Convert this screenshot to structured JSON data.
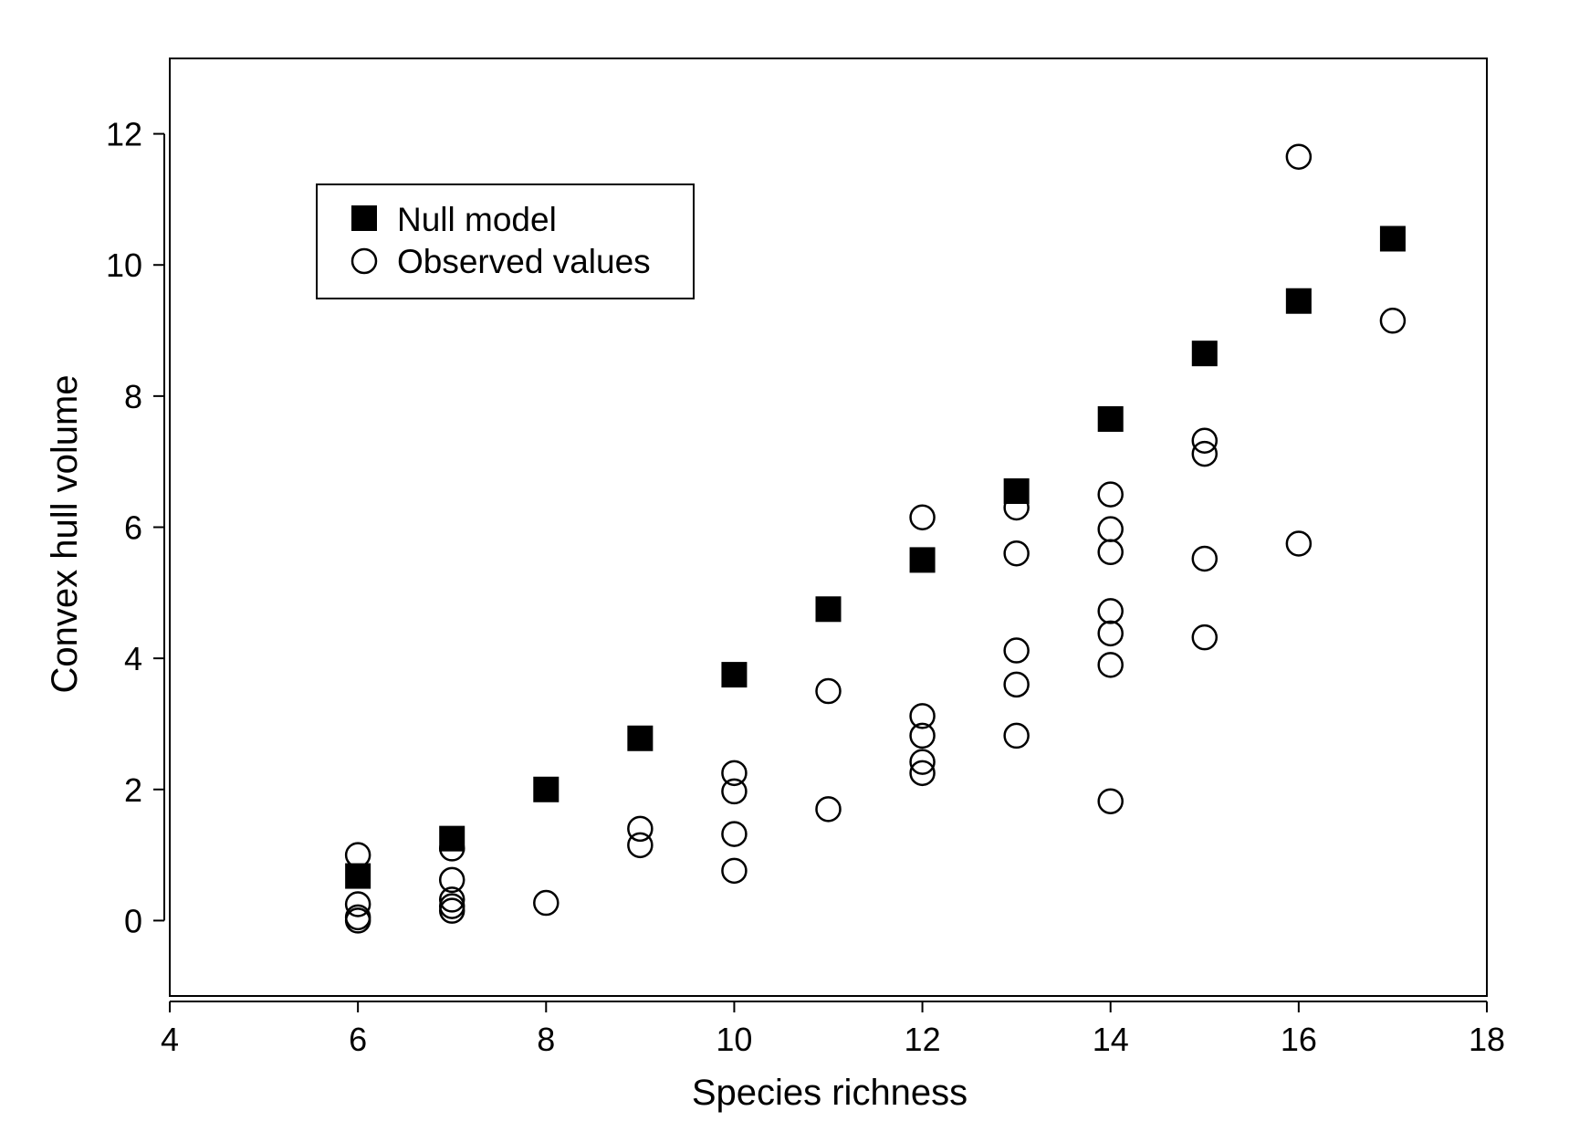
{
  "chart_data": {
    "type": "scatter",
    "xlabel": "Species richness",
    "ylabel": "Convex hull volume",
    "xlim": [
      4,
      18
    ],
    "ylim": [
      -1.15,
      13.15
    ],
    "xticks": [
      "4",
      "6",
      "8",
      "10",
      "12",
      "14",
      "16",
      "18"
    ],
    "yticks": [
      "0",
      "2",
      "4",
      "6",
      "8",
      "10",
      "12"
    ],
    "grid": false,
    "legend_position": "top-left",
    "series": [
      {
        "name": "Null model",
        "marker": "filled-square",
        "color": "#000000",
        "points": [
          [
            6,
            0.68
          ],
          [
            7,
            1.25
          ],
          [
            8,
            2.0
          ],
          [
            9,
            2.78
          ],
          [
            10,
            3.75
          ],
          [
            11,
            4.75
          ],
          [
            12,
            5.5
          ],
          [
            13,
            6.55
          ],
          [
            14,
            7.65
          ],
          [
            15,
            8.65
          ],
          [
            16,
            9.45
          ],
          [
            17,
            10.4
          ]
        ]
      },
      {
        "name": "Observed values",
        "marker": "open-circle",
        "color": "#000000",
        "points": [
          [
            6,
            1.0
          ],
          [
            6,
            0.25
          ],
          [
            6,
            0.05
          ],
          [
            6,
            0.0
          ],
          [
            7,
            1.1
          ],
          [
            7,
            0.62
          ],
          [
            7,
            0.32
          ],
          [
            7,
            0.22
          ],
          [
            7,
            0.15
          ],
          [
            8,
            0.27
          ],
          [
            9,
            1.4
          ],
          [
            9,
            1.15
          ],
          [
            10,
            2.25
          ],
          [
            10,
            1.97
          ],
          [
            10,
            1.32
          ],
          [
            10,
            0.76
          ],
          [
            11,
            3.5
          ],
          [
            11,
            1.7
          ],
          [
            12,
            6.15
          ],
          [
            12,
            3.12
          ],
          [
            12,
            2.82
          ],
          [
            12,
            2.42
          ],
          [
            12,
            2.25
          ],
          [
            13,
            6.3
          ],
          [
            13,
            5.6
          ],
          [
            13,
            4.12
          ],
          [
            13,
            3.6
          ],
          [
            13,
            2.82
          ],
          [
            14,
            6.5
          ],
          [
            14,
            5.97
          ],
          [
            14,
            5.62
          ],
          [
            14,
            4.72
          ],
          [
            14,
            4.38
          ],
          [
            14,
            3.9
          ],
          [
            14,
            1.82
          ],
          [
            15,
            7.32
          ],
          [
            15,
            7.12
          ],
          [
            15,
            5.52
          ],
          [
            15,
            4.32
          ],
          [
            16,
            11.65
          ],
          [
            16,
            5.75
          ],
          [
            17,
            9.15
          ]
        ]
      }
    ]
  }
}
